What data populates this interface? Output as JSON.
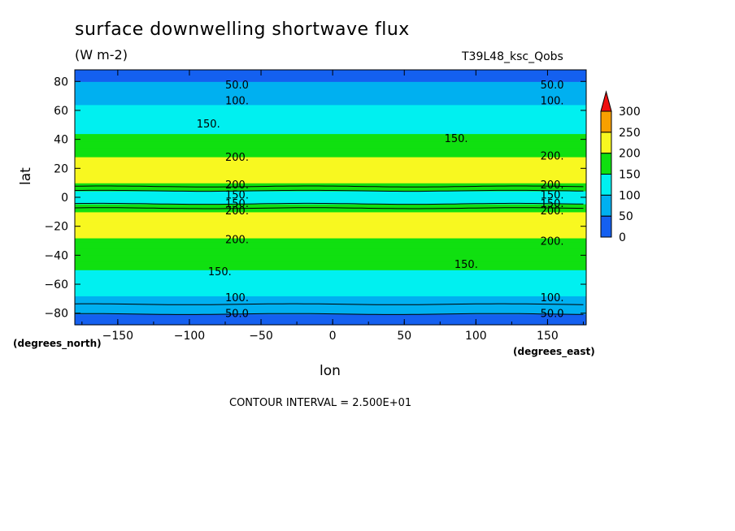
{
  "chart_data": {
    "type": "heatmap",
    "title": "surface downwelling shortwave flux",
    "units": "(W m-2)",
    "run_label": "T39L48_ksc_Qobs",
    "xlabel": "lon",
    "ylabel": "lat",
    "x_unit_label": "(degrees_east)",
    "y_unit_label": "(degrees_north)",
    "xlim": [
      -180,
      177
    ],
    "ylim": [
      -88,
      88
    ],
    "x_ticks": [
      -150,
      -100,
      -50,
      0,
      50,
      100,
      150
    ],
    "x_tick_labels": [
      "-150",
      "-100",
      "-50",
      "0",
      "50",
      "100",
      "150"
    ],
    "y_ticks": [
      -80,
      -60,
      -40,
      -20,
      0,
      20,
      40,
      60,
      80
    ],
    "y_tick_labels": [
      "-80",
      "-60",
      "-40",
      "-20",
      "0",
      "20",
      "40",
      "60",
      "80"
    ],
    "contour_interval_text": "CONTOUR INTERVAL = 2.500E+01",
    "levels": [
      0,
      50,
      100,
      150,
      200,
      250,
      300
    ],
    "level_labels": [
      "0",
      "50",
      "100",
      "150",
      "200",
      "250",
      "300"
    ],
    "level_colors": [
      "#1560f0",
      "#00b0f0",
      "#00f0f0",
      "#10e010",
      "#f8f820",
      "#f8a000",
      "#f01010"
    ],
    "zonal_mean_profile": [
      {
        "lat": -88,
        "value": 35
      },
      {
        "lat": -82,
        "value": 45
      },
      {
        "lat": -75,
        "value": 70
      },
      {
        "lat": -68,
        "value": 100
      },
      {
        "lat": -58,
        "value": 125
      },
      {
        "lat": -50,
        "value": 150
      },
      {
        "lat": -35,
        "value": 175
      },
      {
        "lat": -28,
        "value": 200
      },
      {
        "lat": -18,
        "value": 225
      },
      {
        "lat": -10,
        "value": 200
      },
      {
        "lat": -6,
        "value": 160
      },
      {
        "lat": -3,
        "value": 140
      },
      {
        "lat": 0,
        "value": 135
      },
      {
        "lat": 3,
        "value": 140
      },
      {
        "lat": 6,
        "value": 160
      },
      {
        "lat": 10,
        "value": 200
      },
      {
        "lat": 18,
        "value": 225
      },
      {
        "lat": 28,
        "value": 200
      },
      {
        "lat": 35,
        "value": 175
      },
      {
        "lat": 44,
        "value": 150
      },
      {
        "lat": 55,
        "value": 125
      },
      {
        "lat": 64,
        "value": 100
      },
      {
        "lat": 72,
        "value": 75
      },
      {
        "lat": 80,
        "value": 50
      },
      {
        "lat": 88,
        "value": 35
      }
    ],
    "contour_labels": [
      {
        "text": "50.0",
        "lon": -75,
        "lat": 78
      },
      {
        "text": "50.0",
        "lon": 145,
        "lat": 78
      },
      {
        "text": "100.",
        "lon": -75,
        "lat": 67
      },
      {
        "text": "100.",
        "lon": 145,
        "lat": 67
      },
      {
        "text": "150.",
        "lon": -95,
        "lat": 51
      },
      {
        "text": "150.",
        "lon": 78,
        "lat": 41
      },
      {
        "text": "200.",
        "lon": -75,
        "lat": 28
      },
      {
        "text": "200.",
        "lon": 145,
        "lat": 29
      },
      {
        "text": "200.",
        "lon": -75,
        "lat": 9
      },
      {
        "text": "150.",
        "lon": -75,
        "lat": 2
      },
      {
        "text": "150.",
        "lon": -75,
        "lat": -4
      },
      {
        "text": "200.",
        "lon": -75,
        "lat": -9
      },
      {
        "text": "200.",
        "lon": 145,
        "lat": 9
      },
      {
        "text": "150.",
        "lon": 145,
        "lat": 2
      },
      {
        "text": "150.",
        "lon": 145,
        "lat": -4
      },
      {
        "text": "200.",
        "lon": 145,
        "lat": -9
      },
      {
        "text": "200.",
        "lon": -75,
        "lat": -29
      },
      {
        "text": "200.",
        "lon": 145,
        "lat": -30
      },
      {
        "text": "150.",
        "lon": -87,
        "lat": -51
      },
      {
        "text": "150.",
        "lon": 85,
        "lat": -46
      },
      {
        "text": "100.",
        "lon": -75,
        "lat": -69
      },
      {
        "text": "100.",
        "lon": 145,
        "lat": -69
      },
      {
        "text": "50.0",
        "lon": -75,
        "lat": -80
      },
      {
        "text": "50.0",
        "lon": 145,
        "lat": -80
      }
    ]
  }
}
